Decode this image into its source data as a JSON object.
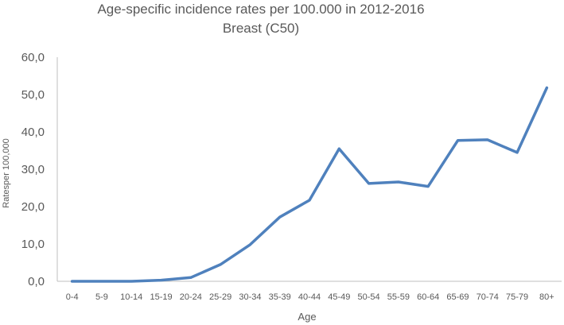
{
  "chart_data": {
    "type": "line",
    "title": "Age-specific incidence rates per 100.000 in 2012-2016",
    "subtitle": "Breast (C50)",
    "xlabel": "Age",
    "ylabel": "Ratesper 100,000",
    "ylim": [
      0,
      60
    ],
    "yticks": [
      "0,0",
      "10,0",
      "20,0",
      "30,0",
      "40,0",
      "50,0",
      "60,0"
    ],
    "grid": false,
    "categories": [
      "0-4",
      "5-9",
      "10-14",
      "15-19",
      "20-24",
      "25-29",
      "30-34",
      "35-39",
      "40-44",
      "45-49",
      "50-54",
      "55-59",
      "60-64",
      "65-69",
      "70-74",
      "75-79",
      "80+"
    ],
    "series": [
      {
        "values": [
          0.0,
          0.0,
          0.0,
          0.3,
          1.0,
          4.5,
          9.8,
          17.2,
          21.7,
          35.5,
          26.2,
          26.6,
          25.4,
          37.7,
          37.9,
          34.5,
          51.8
        ]
      }
    ],
    "line_color": "#4f81bd",
    "axis_color": "#bfbfbf"
  }
}
